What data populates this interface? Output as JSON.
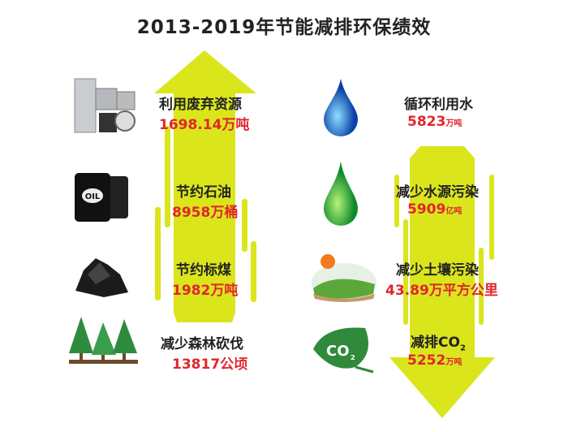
{
  "title": "2013-2019年节能减排环保绩效",
  "colors": {
    "arrow": "#dbe51c",
    "value": "#e0262c",
    "label": "#222222"
  },
  "left_items": [
    {
      "icon": "appliances-icon",
      "label": "利用废弃资源",
      "value": "1698.14",
      "unit": "万吨"
    },
    {
      "icon": "oil-barrels-icon",
      "label": "节约石油",
      "value": "8958",
      "unit": "万桶"
    },
    {
      "icon": "coal-icon",
      "label": "节约标煤",
      "value": "1982",
      "unit": "万吨"
    },
    {
      "icon": "forest-icon",
      "label": "减少森林砍伐",
      "value": "13817",
      "unit": "公顷"
    }
  ],
  "right_items": [
    {
      "icon": "blue-water-drop-icon",
      "label": "循环利用水",
      "value": "5823",
      "unit": "万吨"
    },
    {
      "icon": "green-water-drop-icon",
      "label": "减少水源污染",
      "value": "5909",
      "unit": "亿吨"
    },
    {
      "icon": "farmland-icon",
      "label": "减少土壤污染",
      "value": "43.89",
      "unit": "万平方公里"
    },
    {
      "icon": "co2-leaf-icon",
      "label": "减排CO",
      "label_sub": "2",
      "value": "5252",
      "unit": "万吨",
      "leaf_text": "CO",
      "leaf_sub": "2"
    }
  ]
}
